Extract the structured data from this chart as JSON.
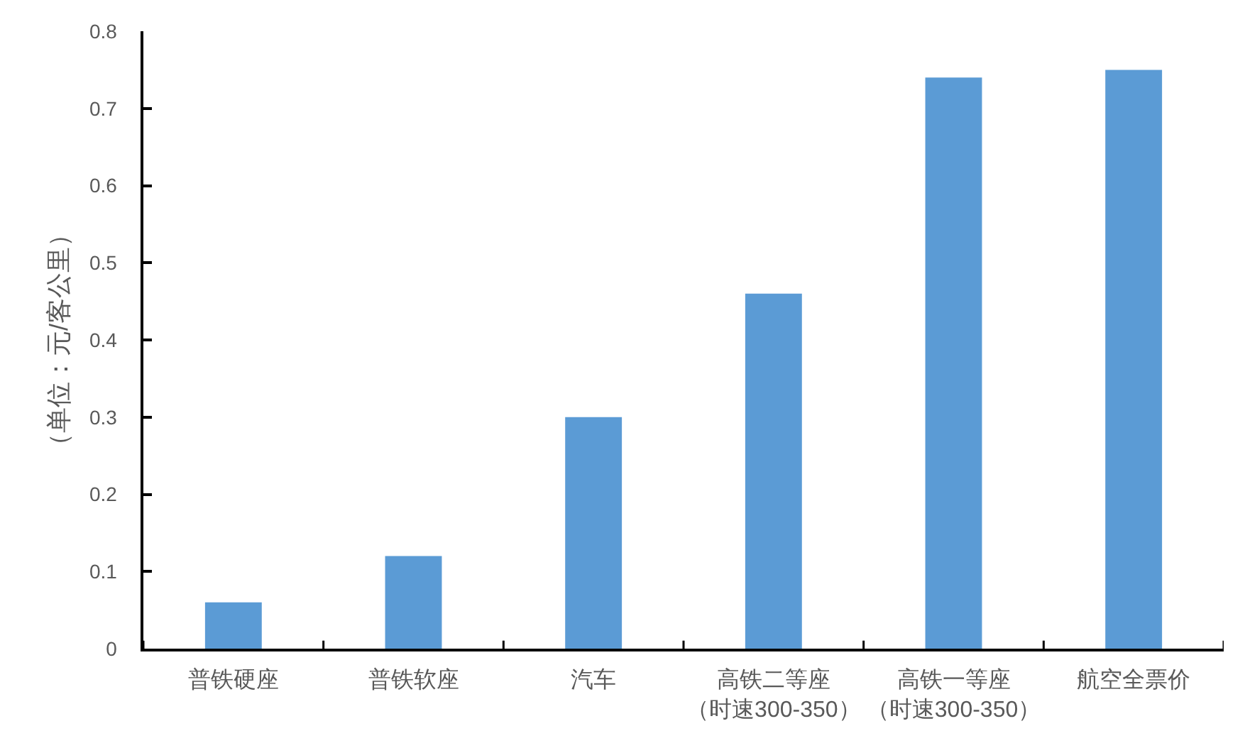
{
  "chart_data": {
    "type": "bar",
    "ylabel": "（单位：元/客公里）",
    "categories": [
      "普铁硬座",
      "普铁软座",
      "汽车",
      "高铁二等座（时速300-350）",
      "高铁一等座（时速300-350）",
      "航空全票价"
    ],
    "values": [
      0.06,
      0.12,
      0.3,
      0.46,
      0.74,
      0.75
    ],
    "color": "#5b9bd5",
    "ylim": [
      0,
      0.8
    ],
    "yticks": [
      0,
      0.1,
      0.2,
      0.3,
      0.4,
      0.5,
      0.6,
      0.7,
      0.8
    ]
  }
}
